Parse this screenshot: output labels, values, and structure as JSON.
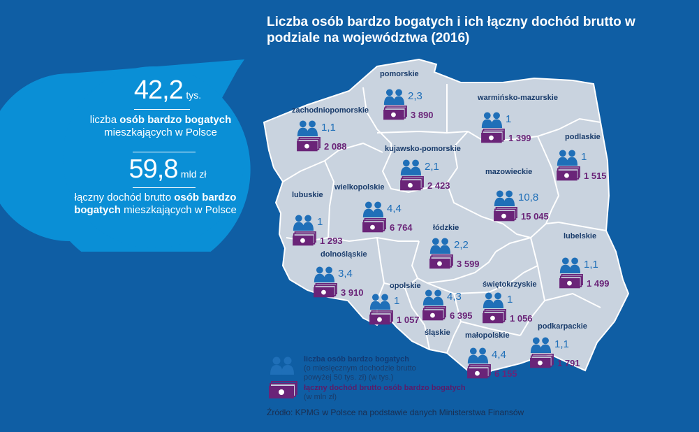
{
  "title": "Liczba osób bardzo bogatych i ich łączny dochód brutto w podziale na województwa (2016)",
  "summary": {
    "people_value": "42,2",
    "people_unit": "tys.",
    "people_desc_pre": "liczba ",
    "people_desc_bold": "osób bardzo bogatych",
    "people_desc_post": "mieszkających w Polsce",
    "income_value": "59,8",
    "income_unit": "mld zł",
    "income_desc_pre": "łączny dochód brutto ",
    "income_desc_bold": "osób bardzo bogatych",
    "income_desc_post": "mieszkających w Polsce"
  },
  "regions": [
    {
      "name": "pomorskie",
      "people": "2,3",
      "income": "3 890"
    },
    {
      "name": "warmińsko-mazurskie",
      "people": "1",
      "income": "1 399"
    },
    {
      "name": "zachodniopomorskie",
      "people": "1,1",
      "income": "2 088"
    },
    {
      "name": "podlaskie",
      "people": "1",
      "income": "1 515"
    },
    {
      "name": "kujawsko-pomorskie",
      "people": "2,1",
      "income": "2 423"
    },
    {
      "name": "mazowieckie",
      "people": "10,8",
      "income": "15 045"
    },
    {
      "name": "lubuskie",
      "people": "1",
      "income": "1 293"
    },
    {
      "name": "wielkopolskie",
      "people": "4,4",
      "income": "6 764"
    },
    {
      "name": "łódzkie",
      "people": "2,2",
      "income": "3 599"
    },
    {
      "name": "lubelskie",
      "people": "1,1",
      "income": "1 499"
    },
    {
      "name": "dolnośląskie",
      "people": "3,4",
      "income": "3 910"
    },
    {
      "name": "opolskie",
      "people": "1",
      "income": "1 057"
    },
    {
      "name": "śląskie",
      "people": "4,3",
      "income": "6 395"
    },
    {
      "name": "świętokrzyskie",
      "people": "1",
      "income": "1 056"
    },
    {
      "name": "małopolskie",
      "people": "4,4",
      "income": "6 155"
    },
    {
      "name": "podkarpackie",
      "people": "1,1",
      "income": "1 791"
    }
  ],
  "legend": {
    "people_bold": "liczba osób bardzo bogatych",
    "people_line2": "(o miesięcznym dochodzie brutto",
    "people_line3": "powyżej 50 tys. zł) (w tys.)",
    "income_bold": "łączny dochód brutto osób bardzo bogatych",
    "income_line2": "(w mln zł)"
  },
  "source": "Źródło: KPMG w Polsce na podstawie danych Ministerstwa Finansów",
  "colors": {
    "background": "#0f5ea4",
    "bubble": "#0a8fd6",
    "map_fill": "#c9d3df",
    "people_icon": "#1f6fb8",
    "money_icon": "#6a2478"
  },
  "icons": {
    "people": "people-icon",
    "money": "money-icon"
  }
}
